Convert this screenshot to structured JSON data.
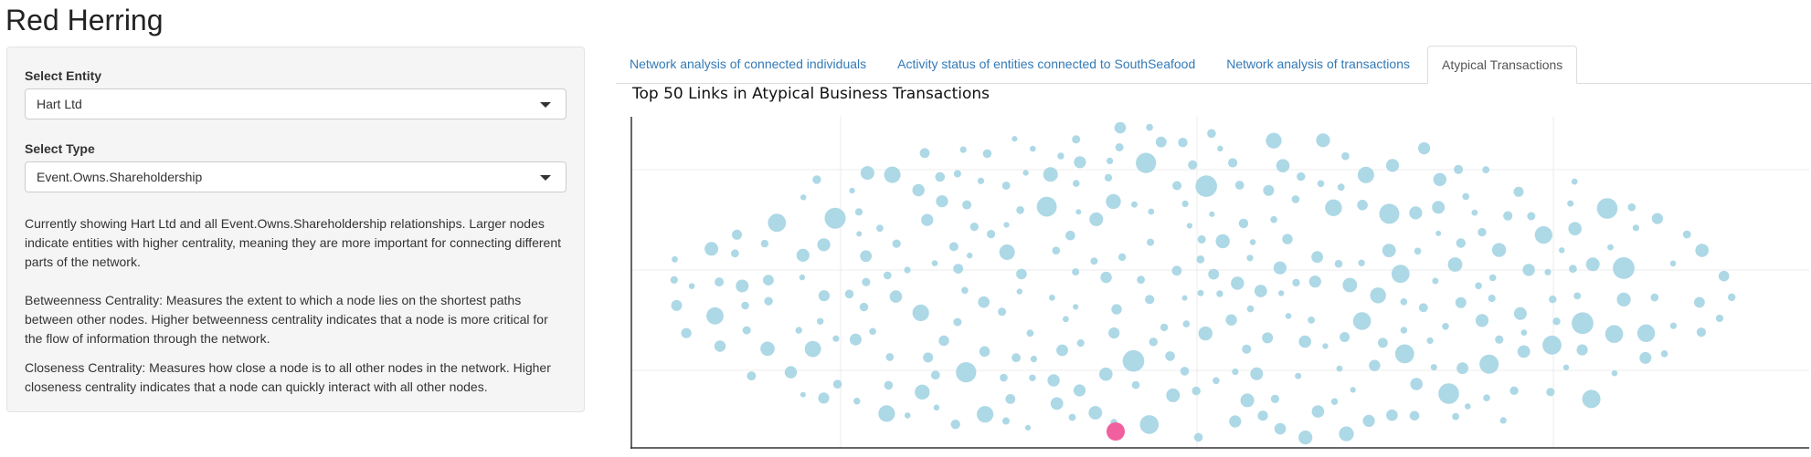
{
  "app": {
    "title": "Red Herring"
  },
  "sidebar": {
    "entity": {
      "label": "Select Entity",
      "value": "Hart Ltd"
    },
    "type": {
      "label": "Select Type",
      "value": "Event.Owns.Shareholdership"
    },
    "description": [
      "Currently showing Hart Ltd and all Event.Owns.Shareholdership relationships. Larger nodes indicate entities with higher centrality, meaning they are more important for connecting different parts of the network.",
      "Betweenness Centrality: Measures the extent to which a node lies on the shortest paths between other nodes. Higher betweenness centrality indicates that a node is more critical for the flow of information through the network.",
      "Closeness Centrality: Measures how close a node is to all other nodes in the network. Higher closeness centrality indicates that a node can quickly interact with all other nodes."
    ]
  },
  "tabs": [
    {
      "label": "Network analysis of connected individuals",
      "active": false
    },
    {
      "label": "Activity status of entities connected to SouthSeafood",
      "active": false
    },
    {
      "label": "Network analysis of transactions",
      "active": false
    },
    {
      "label": "Atypical Transactions",
      "active": true
    }
  ],
  "chart_data": {
    "type": "network",
    "title": "Top 50 Links in Atypical Business Transactions",
    "node_color": "#add8e6",
    "highlight_color": "#f0609e",
    "highlighted_node": "Hart Ltd",
    "grid": true,
    "node_count": 320
  }
}
